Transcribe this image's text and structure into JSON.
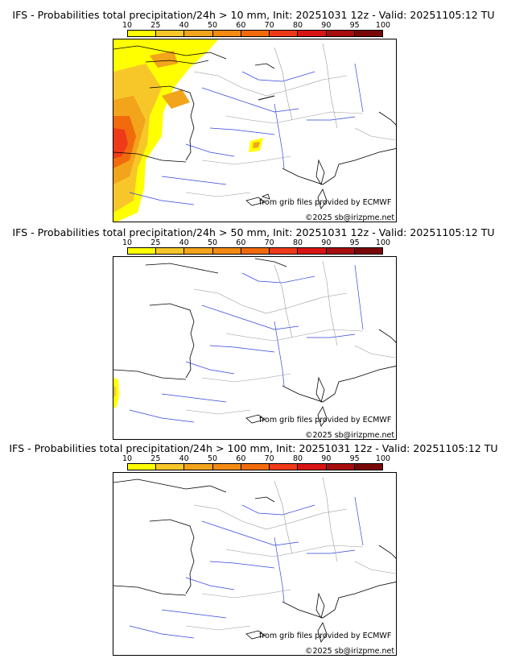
{
  "colorbar": {
    "ticks": [
      "10",
      "25",
      "40",
      "50",
      "60",
      "70",
      "80",
      "90",
      "95",
      "100"
    ],
    "colors": [
      "#ffff00",
      "#f7c72a",
      "#f2a41b",
      "#f48a12",
      "#f16b0c",
      "#ef3a1a",
      "#d81414",
      "#a80d0d",
      "#7a0707"
    ]
  },
  "panels": [
    {
      "title": "IFS - Probabilities total precipitation/24h > 10 mm, Init: 20251031 12z - Valid: 20251105:12 TU",
      "source": "from grib files provided by ECMWF",
      "copyright": "©2025 sb@irizpme.net",
      "threshold_mm": 10
    },
    {
      "title": "IFS - Probabilities total precipitation/24h > 50 mm, Init: 20251031 12z - Valid: 20251105:12 TU",
      "source": "from grib files provided by ECMWF",
      "copyright": "©2025 sb@irizpme.net",
      "threshold_mm": 50
    },
    {
      "title": "IFS - Probabilities total precipitation/24h > 100 mm, Init: 20251031 12z - Valid: 20251105:12 TU",
      "source": "from grib files provided by ECMWF",
      "copyright": "©2025 sb@irizpme.net",
      "threshold_mm": 100
    }
  ]
}
